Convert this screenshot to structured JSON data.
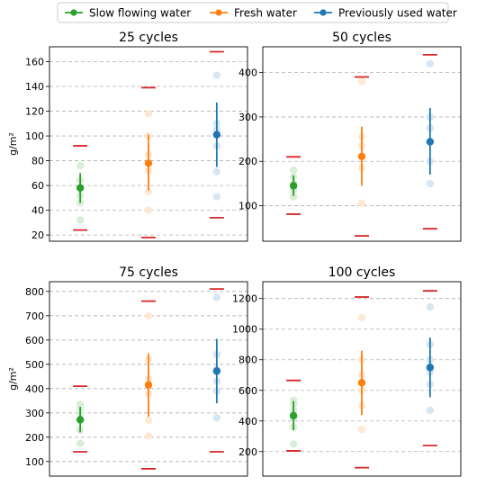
{
  "legend": {
    "placement": "top-center",
    "entries": [
      {
        "name": "Slow flowing water",
        "color": "#2ca02c"
      },
      {
        "name": "Fresh water",
        "color": "#ff7f0e"
      },
      {
        "name": "Previously used water",
        "color": "#1f77b4"
      }
    ]
  },
  "colors": {
    "limit": "#d62728",
    "grid": "#b0b0b0"
  },
  "chart_data": [
    {
      "type": "scatter",
      "title": "25 cycles",
      "ylabel": "g/m²",
      "ylim": [
        15,
        172
      ],
      "yticks": [
        20,
        40,
        60,
        80,
        100,
        120,
        140,
        160
      ],
      "grid": "horizontal-dashed",
      "series": [
        {
          "name": "Slow flowing water",
          "mean": 58,
          "err_low": 46,
          "err_high": 70,
          "limit_low": 24,
          "limit_high": 92,
          "points": [
            32,
            46,
            52,
            58,
            64,
            76
          ]
        },
        {
          "name": "Fresh water",
          "mean": 78,
          "err_low": 56,
          "err_high": 101,
          "limit_low": 18,
          "limit_high": 139,
          "points": [
            40,
            55,
            72,
            85,
            100,
            118
          ]
        },
        {
          "name": "Previously used water",
          "mean": 101,
          "err_low": 75,
          "err_high": 127,
          "limit_low": 34,
          "limit_high": 168,
          "points": [
            51,
            71,
            92,
            105,
            110,
            149
          ]
        }
      ]
    },
    {
      "type": "scatter",
      "title": "50 cycles",
      "ylabel": "",
      "ylim": [
        20,
        458
      ],
      "yticks": [
        100,
        200,
        300,
        400
      ],
      "grid": "horizontal-dashed",
      "series": [
        {
          "name": "Slow flowing water",
          "mean": 145,
          "err_low": 122,
          "err_high": 168,
          "limit_low": 81,
          "limit_high": 210,
          "points": [
            120,
            135,
            150,
            165,
            180
          ]
        },
        {
          "name": "Fresh water",
          "mean": 211,
          "err_low": 145,
          "err_high": 278,
          "limit_low": 32,
          "limit_high": 390,
          "points": [
            105,
            185,
            210,
            235,
            255,
            380
          ]
        },
        {
          "name": "Previously used water",
          "mean": 244,
          "err_low": 170,
          "err_high": 320,
          "limit_low": 48,
          "limit_high": 440,
          "points": [
            150,
            200,
            245,
            275,
            300,
            420
          ]
        }
      ]
    },
    {
      "type": "scatter",
      "title": "75 cycles",
      "ylabel": "g/m²",
      "ylim": [
        40,
        840
      ],
      "yticks": [
        100,
        200,
        300,
        400,
        500,
        600,
        700,
        800
      ],
      "grid": "horizontal-dashed",
      "series": [
        {
          "name": "Slow flowing water",
          "mean": 272,
          "err_low": 220,
          "err_high": 325,
          "limit_low": 140,
          "limit_high": 410,
          "points": [
            175,
            230,
            270,
            300,
            320,
            335
          ]
        },
        {
          "name": "Fresh water",
          "mean": 415,
          "err_low": 285,
          "err_high": 545,
          "limit_low": 70,
          "limit_high": 760,
          "points": [
            205,
            270,
            380,
            440,
            520,
            700
          ]
        },
        {
          "name": "Previously used water",
          "mean": 472,
          "err_low": 340,
          "err_high": 605,
          "limit_low": 140,
          "limit_high": 810,
          "points": [
            280,
            390,
            430,
            480,
            540,
            775
          ]
        }
      ]
    },
    {
      "type": "scatter",
      "title": "100 cycles",
      "ylabel": "",
      "ylim": [
        40,
        1310
      ],
      "yticks": [
        200,
        400,
        600,
        800,
        1000,
        1200
      ],
      "grid": "horizontal-dashed",
      "series": [
        {
          "name": "Slow flowing water",
          "mean": 435,
          "err_low": 340,
          "err_high": 530,
          "limit_low": 205,
          "limit_high": 665,
          "points": [
            250,
            360,
            420,
            470,
            510,
            535
          ]
        },
        {
          "name": "Fresh water",
          "mean": 650,
          "err_low": 440,
          "err_high": 860,
          "limit_low": 95,
          "limit_high": 1210,
          "points": [
            345,
            500,
            600,
            700,
            800,
            1075
          ]
        },
        {
          "name": "Previously used water",
          "mean": 750,
          "err_low": 555,
          "err_high": 945,
          "limit_low": 240,
          "limit_high": 1250,
          "points": [
            470,
            640,
            720,
            800,
            900,
            1145
          ]
        }
      ]
    }
  ]
}
